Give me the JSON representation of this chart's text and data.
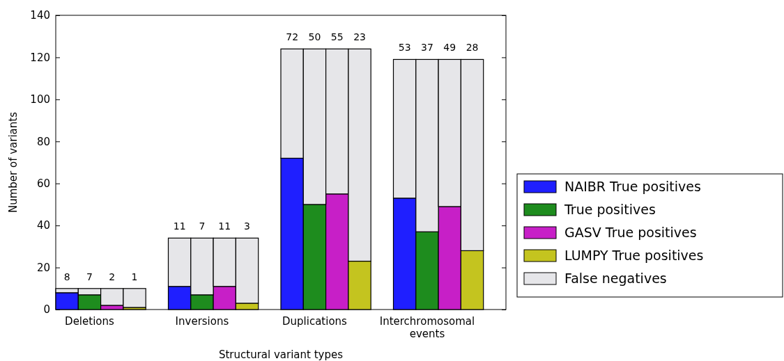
{
  "chart_data": {
    "type": "bar",
    "stacked": true,
    "xlabel": "Structural variant types",
    "ylabel": "Number of variants",
    "categories": [
      null,
      "Deletions",
      null,
      null,
      null,
      null,
      "Inversions",
      null,
      null,
      null,
      null,
      "Duplications",
      null,
      null,
      null,
      null,
      "Interchromosomal events",
      null,
      null,
      null
    ],
    "series": [
      {
        "name": "NAIBR True positives",
        "color": "#1f1fff",
        "values": [
          8,
          null,
          null,
          null,
          null,
          11,
          null,
          null,
          null,
          null,
          72,
          null,
          null,
          null,
          null,
          53,
          null,
          null,
          null,
          null
        ],
        "value_labels": [
          "8",
          null,
          null,
          null,
          null,
          null,
          null,
          null,
          null,
          null,
          null,
          null,
          null,
          null,
          null,
          null,
          null,
          null,
          null,
          null
        ]
      },
      {
        "name": "True positives",
        "color": "#1e8c1e",
        "values": [
          null,
          7,
          null,
          null,
          null,
          null,
          7,
          null,
          null,
          null,
          null,
          50,
          null,
          null,
          null,
          null,
          37,
          null,
          null,
          null
        ],
        "value_labels": [
          null,
          "7",
          null,
          null,
          null,
          null,
          null,
          null,
          null,
          null,
          null,
          null,
          null,
          null,
          null,
          null,
          null,
          null,
          null,
          null
        ]
      },
      {
        "name": "GASV True positives",
        "color": "#c71fc7",
        "values": [
          null,
          null,
          2,
          null,
          null,
          null,
          null,
          11,
          null,
          null,
          null,
          null,
          55,
          null,
          null,
          null,
          null,
          49,
          null,
          null
        ],
        "value_labels": [
          null,
          null,
          "2",
          null,
          null,
          null,
          null,
          null,
          null,
          null,
          null,
          null,
          null,
          null,
          null,
          null,
          null,
          null,
          null,
          null
        ]
      },
      {
        "name": "LUMPY True positives",
        "color": "#c4c41f",
        "values": [
          null,
          null,
          null,
          1,
          null,
          null,
          null,
          null,
          3,
          null,
          null,
          null,
          null,
          23,
          null,
          null,
          null,
          null,
          28,
          null
        ],
        "value_labels": [
          null,
          null,
          null,
          "1",
          null,
          null,
          null,
          null,
          null,
          null,
          null,
          null,
          null,
          null,
          null,
          null,
          null,
          null,
          null,
          null
        ]
      },
      {
        "name": "False negatives",
        "color": "#e6e6e9",
        "values": [
          2,
          3,
          8,
          9,
          null,
          23,
          27,
          23,
          31,
          null,
          52,
          74,
          69,
          101,
          null,
          66,
          82,
          70,
          91,
          null
        ]
      }
    ],
    "annotations": [
      {
        "text": "11",
        "y": 34
      },
      {
        "text": "7",
        "y": 34
      },
      {
        "text": "11",
        "y": 34
      },
      {
        "text": "3",
        "y": 34
      },
      {
        "text": "72",
        "y": 124
      },
      {
        "text": "50",
        "y": 124
      },
      {
        "text": "55",
        "y": 124
      },
      {
        "text": "23",
        "y": 124
      },
      {
        "text": "53",
        "y": 119
      },
      {
        "text": "37",
        "y": 119
      },
      {
        "text": "49",
        "y": 119
      },
      {
        "text": "28",
        "y": 119
      }
    ],
    "ylim": [
      0,
      140
    ],
    "yticks": [
      0,
      20,
      40,
      60,
      80,
      100,
      120,
      140
    ],
    "legend": "right"
  }
}
